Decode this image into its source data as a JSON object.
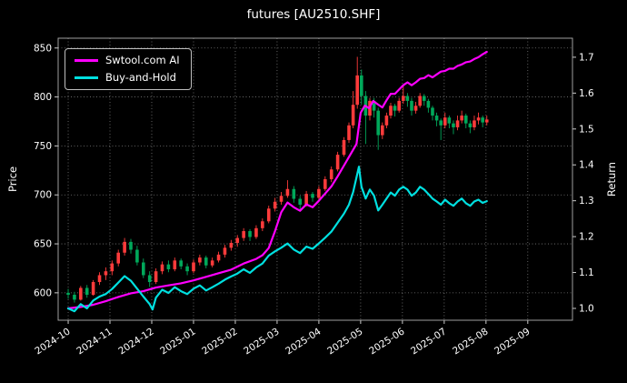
{
  "title": "futures [AU2510.SHF]",
  "chart_data": {
    "type": "candlestick+line",
    "title": "futures [AU2510.SHF]",
    "xlabel": "",
    "ylabel_left": "Price",
    "ylabel_right": "Return",
    "grid": true,
    "legend_position": "upper-left",
    "x_tick_labels": [
      "2024-10",
      "2024-11",
      "2024-12",
      "2025-01",
      "2025-02",
      "2025-03",
      "2025-04",
      "2025-05",
      "2025-06",
      "2025-07",
      "2025-08",
      "2025-09"
    ],
    "price_ticks": [
      600,
      650,
      700,
      750,
      800,
      850
    ],
    "return_tick_labels": [
      "1.0",
      "1.1",
      "1.2",
      "1.3",
      "1.4",
      "1.5",
      "1.6",
      "1.7"
    ],
    "price_ylim": [
      572,
      860
    ],
    "return_ylim": [
      0.967,
      1.753
    ],
    "xlim": [
      -0.24,
      12.07
    ],
    "colors": {
      "background": "#000000",
      "text": "#ffffff",
      "grid": "#7a7a7a",
      "spine": "#b0b0b0",
      "tick": "#cccccc",
      "candle_up": "#fe3b3b",
      "candle_down": "#00a85a",
      "ai_line": "#ff00ff",
      "bah_line": "#00e0e0"
    },
    "candles": [
      [
        0.0,
        600,
        604,
        594,
        598
      ],
      [
        0.15,
        598,
        601,
        590,
        593
      ],
      [
        0.3,
        593,
        607,
        592,
        605
      ],
      [
        0.45,
        605,
        608,
        595,
        598
      ],
      [
        0.6,
        598,
        613,
        597,
        611
      ],
      [
        0.75,
        611,
        621,
        608,
        618
      ],
      [
        0.9,
        618,
        626,
        613,
        622
      ],
      [
        1.05,
        622,
        633,
        618,
        630
      ],
      [
        1.2,
        630,
        644,
        627,
        641
      ],
      [
        1.35,
        641,
        656,
        638,
        652
      ],
      [
        1.5,
        652,
        655,
        640,
        644
      ],
      [
        1.65,
        644,
        648,
        628,
        631
      ],
      [
        1.8,
        631,
        635,
        615,
        618
      ],
      [
        1.95,
        618,
        622,
        606,
        611
      ],
      [
        2.1,
        611,
        625,
        609,
        622
      ],
      [
        2.25,
        622,
        632,
        619,
        629
      ],
      [
        2.4,
        629,
        633,
        621,
        624
      ],
      [
        2.55,
        624,
        636,
        622,
        633
      ],
      [
        2.7,
        633,
        635,
        624,
        627
      ],
      [
        2.85,
        627,
        630,
        618,
        622
      ],
      [
        3.0,
        622,
        634,
        620,
        631
      ],
      [
        3.15,
        631,
        639,
        628,
        636
      ],
      [
        3.3,
        636,
        638,
        625,
        628
      ],
      [
        3.45,
        628,
        636,
        626,
        633
      ],
      [
        3.6,
        633,
        642,
        631,
        639
      ],
      [
        3.75,
        639,
        649,
        636,
        646
      ],
      [
        3.9,
        646,
        654,
        643,
        651
      ],
      [
        4.05,
        651,
        659,
        647,
        656
      ],
      [
        4.2,
        656,
        666,
        653,
        663
      ],
      [
        4.35,
        663,
        665,
        653,
        657
      ],
      [
        4.5,
        657,
        669,
        655,
        666
      ],
      [
        4.65,
        666,
        676,
        663,
        673
      ],
      [
        4.8,
        673,
        689,
        671,
        686
      ],
      [
        4.95,
        686,
        697,
        683,
        693
      ],
      [
        5.1,
        693,
        703,
        690,
        699
      ],
      [
        5.25,
        699,
        715,
        697,
        706
      ],
      [
        5.4,
        706,
        709,
        692,
        696
      ],
      [
        5.55,
        696,
        699,
        685,
        690
      ],
      [
        5.7,
        690,
        704,
        688,
        701
      ],
      [
        5.85,
        701,
        703,
        693,
        697
      ],
      [
        6.0,
        697,
        709,
        695,
        706
      ],
      [
        6.15,
        706,
        719,
        704,
        716
      ],
      [
        6.3,
        716,
        729,
        713,
        726
      ],
      [
        6.45,
        726,
        744,
        724,
        741
      ],
      [
        6.6,
        741,
        759,
        739,
        756
      ],
      [
        6.72,
        756,
        774,
        753,
        771
      ],
      [
        6.82,
        771,
        806,
        768,
        792
      ],
      [
        6.92,
        792,
        841,
        788,
        822
      ],
      [
        7.02,
        822,
        828,
        792,
        801
      ],
      [
        7.12,
        801,
        806,
        752,
        781
      ],
      [
        7.22,
        781,
        799,
        776,
        796
      ],
      [
        7.32,
        796,
        799,
        779,
        786
      ],
      [
        7.42,
        786,
        789,
        746,
        761
      ],
      [
        7.52,
        761,
        774,
        757,
        771
      ],
      [
        7.62,
        771,
        784,
        768,
        781
      ],
      [
        7.72,
        781,
        794,
        778,
        791
      ],
      [
        7.82,
        791,
        793,
        780,
        786
      ],
      [
        7.92,
        786,
        799,
        784,
        796
      ],
      [
        8.02,
        796,
        811,
        793,
        801
      ],
      [
        8.12,
        801,
        804,
        790,
        796
      ],
      [
        8.22,
        796,
        799,
        781,
        786
      ],
      [
        8.32,
        786,
        795,
        783,
        791
      ],
      [
        8.42,
        791,
        804,
        789,
        801
      ],
      [
        8.52,
        801,
        803,
        791,
        796
      ],
      [
        8.62,
        796,
        798,
        784,
        789
      ],
      [
        8.72,
        789,
        791,
        776,
        781
      ],
      [
        8.82,
        781,
        784,
        770,
        776
      ],
      [
        8.92,
        776,
        778,
        756,
        771
      ],
      [
        9.02,
        771,
        784,
        768,
        779
      ],
      [
        9.12,
        779,
        781,
        768,
        773
      ],
      [
        9.22,
        773,
        776,
        762,
        769
      ],
      [
        9.32,
        769,
        781,
        766,
        776
      ],
      [
        9.42,
        776,
        786,
        773,
        781
      ],
      [
        9.52,
        781,
        783,
        768,
        773
      ],
      [
        9.62,
        773,
        776,
        763,
        769
      ],
      [
        9.72,
        769,
        781,
        766,
        776
      ],
      [
        9.82,
        776,
        784,
        772,
        779
      ],
      [
        9.92,
        779,
        781,
        769,
        774
      ],
      [
        10.02,
        774,
        781,
        771,
        777
      ]
    ],
    "series": [
      {
        "name": "Swtool.com AI",
        "axis": "return",
        "color_key": "ai_line",
        "points": [
          [
            0.0,
            1.0
          ],
          [
            0.3,
            1.004
          ],
          [
            0.6,
            1.01
          ],
          [
            0.9,
            1.02
          ],
          [
            1.2,
            1.032
          ],
          [
            1.5,
            1.042
          ],
          [
            1.8,
            1.048
          ],
          [
            2.1,
            1.058
          ],
          [
            2.4,
            1.064
          ],
          [
            2.7,
            1.07
          ],
          [
            3.0,
            1.078
          ],
          [
            3.3,
            1.088
          ],
          [
            3.6,
            1.098
          ],
          [
            3.9,
            1.108
          ],
          [
            4.2,
            1.125
          ],
          [
            4.5,
            1.138
          ],
          [
            4.65,
            1.148
          ],
          [
            4.8,
            1.168
          ],
          [
            4.95,
            1.215
          ],
          [
            5.1,
            1.268
          ],
          [
            5.25,
            1.295
          ],
          [
            5.4,
            1.282
          ],
          [
            5.55,
            1.272
          ],
          [
            5.7,
            1.29
          ],
          [
            5.85,
            1.282
          ],
          [
            6.0,
            1.3
          ],
          [
            6.15,
            1.32
          ],
          [
            6.3,
            1.34
          ],
          [
            6.45,
            1.368
          ],
          [
            6.6,
            1.398
          ],
          [
            6.75,
            1.428
          ],
          [
            6.9,
            1.458
          ],
          [
            7.0,
            1.545
          ],
          [
            7.1,
            1.565
          ],
          [
            7.2,
            1.558
          ],
          [
            7.3,
            1.578
          ],
          [
            7.42,
            1.568
          ],
          [
            7.52,
            1.56
          ],
          [
            7.62,
            1.58
          ],
          [
            7.72,
            1.598
          ],
          [
            7.82,
            1.598
          ],
          [
            7.92,
            1.61
          ],
          [
            8.02,
            1.622
          ],
          [
            8.12,
            1.63
          ],
          [
            8.22,
            1.622
          ],
          [
            8.32,
            1.63
          ],
          [
            8.42,
            1.64
          ],
          [
            8.52,
            1.642
          ],
          [
            8.62,
            1.65
          ],
          [
            8.72,
            1.644
          ],
          [
            8.82,
            1.652
          ],
          [
            8.92,
            1.66
          ],
          [
            9.02,
            1.662
          ],
          [
            9.12,
            1.668
          ],
          [
            9.22,
            1.668
          ],
          [
            9.32,
            1.676
          ],
          [
            9.42,
            1.68
          ],
          [
            9.52,
            1.686
          ],
          [
            9.62,
            1.688
          ],
          [
            9.72,
            1.695
          ],
          [
            9.82,
            1.7
          ],
          [
            9.92,
            1.708
          ],
          [
            10.02,
            1.715
          ]
        ]
      },
      {
        "name": "Buy-and-Hold",
        "axis": "return",
        "color_key": "bah_line",
        "points": [
          [
            0.0,
            1.0
          ],
          [
            0.15,
            0.992
          ],
          [
            0.3,
            1.012
          ],
          [
            0.45,
            1.0
          ],
          [
            0.6,
            1.022
          ],
          [
            0.75,
            1.033
          ],
          [
            0.9,
            1.04
          ],
          [
            1.05,
            1.054
          ],
          [
            1.2,
            1.072
          ],
          [
            1.35,
            1.09
          ],
          [
            1.5,
            1.077
          ],
          [
            1.65,
            1.055
          ],
          [
            1.8,
            1.033
          ],
          [
            1.95,
            1.012
          ],
          [
            2.02,
            0.997
          ],
          [
            2.1,
            1.03
          ],
          [
            2.25,
            1.052
          ],
          [
            2.4,
            1.043
          ],
          [
            2.55,
            1.059
          ],
          [
            2.7,
            1.048
          ],
          [
            2.85,
            1.04
          ],
          [
            3.0,
            1.055
          ],
          [
            3.15,
            1.064
          ],
          [
            3.3,
            1.05
          ],
          [
            3.45,
            1.059
          ],
          [
            3.6,
            1.069
          ],
          [
            3.75,
            1.08
          ],
          [
            3.9,
            1.089
          ],
          [
            4.05,
            1.097
          ],
          [
            4.2,
            1.109
          ],
          [
            4.35,
            1.099
          ],
          [
            4.5,
            1.114
          ],
          [
            4.65,
            1.125
          ],
          [
            4.8,
            1.147
          ],
          [
            4.95,
            1.159
          ],
          [
            5.1,
            1.169
          ],
          [
            5.25,
            1.181
          ],
          [
            5.4,
            1.164
          ],
          [
            5.55,
            1.154
          ],
          [
            5.7,
            1.172
          ],
          [
            5.85,
            1.166
          ],
          [
            6.0,
            1.181
          ],
          [
            6.15,
            1.197
          ],
          [
            6.3,
            1.214
          ],
          [
            6.45,
            1.239
          ],
          [
            6.6,
            1.264
          ],
          [
            6.72,
            1.289
          ],
          [
            6.82,
            1.324
          ],
          [
            6.92,
            1.375
          ],
          [
            6.96,
            1.395
          ],
          [
            7.02,
            1.339
          ],
          [
            7.12,
            1.306
          ],
          [
            7.22,
            1.331
          ],
          [
            7.32,
            1.314
          ],
          [
            7.42,
            1.273
          ],
          [
            7.52,
            1.289
          ],
          [
            7.62,
            1.306
          ],
          [
            7.72,
            1.323
          ],
          [
            7.82,
            1.314
          ],
          [
            7.92,
            1.331
          ],
          [
            8.02,
            1.339
          ],
          [
            8.12,
            1.331
          ],
          [
            8.22,
            1.314
          ],
          [
            8.32,
            1.323
          ],
          [
            8.42,
            1.339
          ],
          [
            8.52,
            1.331
          ],
          [
            8.62,
            1.319
          ],
          [
            8.72,
            1.306
          ],
          [
            8.82,
            1.298
          ],
          [
            8.92,
            1.289
          ],
          [
            9.02,
            1.303
          ],
          [
            9.12,
            1.293
          ],
          [
            9.22,
            1.286
          ],
          [
            9.32,
            1.298
          ],
          [
            9.42,
            1.306
          ],
          [
            9.52,
            1.293
          ],
          [
            9.62,
            1.286
          ],
          [
            9.72,
            1.298
          ],
          [
            9.82,
            1.303
          ],
          [
            9.92,
            1.294
          ],
          [
            10.02,
            1.299
          ]
        ]
      }
    ]
  }
}
